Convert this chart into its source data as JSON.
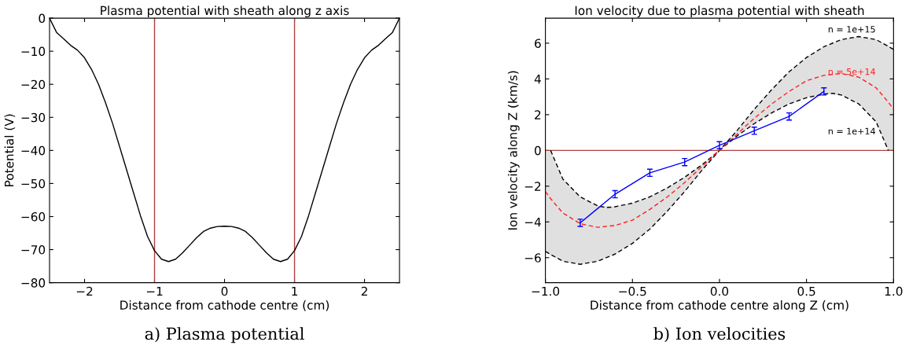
{
  "chart_data": [
    {
      "type": "line",
      "title": "Plasma potential with sheath along z axis",
      "xlabel": "Distance from cathode centre (cm)",
      "ylabel": "Potential (V)",
      "x": [
        -2.5,
        -2.4,
        -2.3,
        -2.2,
        -2.1,
        -2.0,
        -1.9,
        -1.8,
        -1.7,
        -1.6,
        -1.5,
        -1.4,
        -1.3,
        -1.2,
        -1.1,
        -1.0,
        -0.9,
        -0.8,
        -0.7,
        -0.6,
        -0.5,
        -0.4,
        -0.3,
        -0.2,
        -0.1,
        0,
        0.1,
        0.2,
        0.3,
        0.4,
        0.5,
        0.6,
        0.7,
        0.8,
        0.9,
        1.0,
        1.1,
        1.2,
        1.3,
        1.4,
        1.5,
        1.6,
        1.7,
        1.8,
        1.9,
        2.0,
        2.1,
        2.2,
        2.3,
        2.4,
        2.5
      ],
      "series": [
        {
          "color": "#000000",
          "values": [
            0,
            -4.3,
            -6.2,
            -8.2,
            -9.7,
            -12,
            -15.5,
            -20,
            -25.6,
            -31.8,
            -38.8,
            -45.8,
            -52.8,
            -59.8,
            -66,
            -70.3,
            -72.9,
            -73.6,
            -72.9,
            -71,
            -68.7,
            -66.4,
            -64.5,
            -63.5,
            -63,
            -62.9,
            -63,
            -63.5,
            -64.5,
            -66.4,
            -68.7,
            -71,
            -72.9,
            -73.6,
            -72.9,
            -70.3,
            -66,
            -59.8,
            -52.8,
            -45.8,
            -38.8,
            -31.8,
            -25.6,
            -20,
            -15.5,
            -12,
            -9.7,
            -8.2,
            -6.2,
            -4.3,
            0
          ]
        }
      ],
      "xlim": [
        -2.5,
        2.5
      ],
      "ylim": [
        -80,
        0
      ],
      "xticks": [
        {
          "value": -2,
          "label": "−2"
        },
        {
          "value": -1,
          "label": "−1"
        },
        0,
        1,
        2
      ],
      "yticks": [
        {
          "value": -80,
          "label": "−80"
        },
        {
          "value": -70,
          "label": "−70"
        },
        {
          "value": -60,
          "label": "−60"
        },
        {
          "value": -50,
          "label": "−50"
        },
        {
          "value": -40,
          "label": "−40"
        },
        {
          "value": -30,
          "label": "−30"
        },
        {
          "value": -20,
          "label": "−20"
        },
        {
          "value": -10,
          "label": "−10"
        },
        0
      ],
      "ref_lines": [
        {
          "axis": "x",
          "value": -1,
          "color": "#b04040"
        },
        {
          "axis": "x",
          "value": 1,
          "color": "#b04040"
        }
      ],
      "grid": false,
      "legend": false,
      "marker": "none",
      "line_style": "solid",
      "annotations": [
        "a) Plasma potential"
      ]
    },
    {
      "type": "line",
      "title": "Ion velocity due to plasma potential with sheath",
      "xlabel": "Distance from cathode centre along Z (cm)",
      "ylabel": "Ion velocity along Z (km/s)",
      "series": [
        {
          "color": "#000000",
          "line_style": "dashed",
          "x": [
            -1,
            -0.9,
            -0.8,
            -0.7,
            -0.6,
            -0.5,
            -0.4,
            -0.3,
            -0.2,
            -0.1,
            0,
            0.1,
            0.2,
            0.3,
            0.4,
            0.5,
            0.6,
            0.7,
            0.8,
            0.9,
            1
          ],
          "values": [
            -5.65,
            -6.2,
            -6.37,
            -6.2,
            -5.8,
            -5.2,
            -4.4,
            -3.4,
            -2.3,
            -1.1,
            0,
            1.1,
            2.3,
            3.4,
            4.4,
            5.2,
            5.8,
            6.2,
            6.37,
            6.2,
            5.65
          ]
        },
        {
          "color": "#000000",
          "line_style": "dashed",
          "x": [
            -0.97,
            -0.9,
            -0.8,
            -0.7,
            -0.65,
            -0.6,
            -0.5,
            -0.4,
            -0.3,
            -0.2,
            -0.1,
            0,
            0.1,
            0.2,
            0.3,
            0.4,
            0.5,
            0.6,
            0.65,
            0.7,
            0.8,
            0.9,
            0.97
          ],
          "values": [
            0,
            -1.6,
            -2.6,
            -3.1,
            -3.2,
            -3.15,
            -2.95,
            -2.6,
            -2.1,
            -1.5,
            -0.8,
            0,
            0.8,
            1.5,
            2.1,
            2.6,
            2.95,
            3.15,
            3.2,
            3.1,
            2.6,
            1.6,
            0
          ]
        },
        {
          "color": "#ff2020",
          "line_style": "dashed",
          "x": [
            -1,
            -0.97,
            -0.9,
            -0.8,
            -0.7,
            -0.6,
            -0.5,
            -0.4,
            -0.3,
            -0.2,
            -0.1,
            0,
            0.1,
            0.2,
            0.3,
            0.4,
            0.5,
            0.6,
            0.7,
            0.8,
            0.9,
            0.97,
            1
          ],
          "values": [
            -2.3,
            -2.7,
            -3.5,
            -4.1,
            -4.3,
            -4.2,
            -3.9,
            -3.3,
            -2.6,
            -1.8,
            -0.9,
            0,
            0.9,
            1.8,
            2.6,
            3.3,
            3.9,
            4.2,
            4.3,
            4.1,
            3.5,
            2.7,
            2.3
          ],
          "lower": [
            -5.65,
            -5.9,
            -6.2,
            -6.37,
            -6.2,
            -5.8,
            -5.2,
            -4.4,
            -3.4,
            -2.3,
            -1.1,
            0,
            0.8,
            1.5,
            2.1,
            2.6,
            2.95,
            3.15,
            3.1,
            2.6,
            1.6,
            0,
            0
          ],
          "upper": [
            0,
            0,
            -1.6,
            -2.6,
            -3.1,
            -3.15,
            -2.95,
            -2.6,
            -2.1,
            -1.5,
            -0.8,
            0,
            1.1,
            2.3,
            3.4,
            4.4,
            5.2,
            5.8,
            6.2,
            6.37,
            6.2,
            5.9,
            5.65
          ]
        },
        {
          "color": "#0000ff",
          "line_style": "solid",
          "x": [
            -0.8,
            -0.6,
            -0.4,
            -0.2,
            0,
            0.2,
            0.4,
            0.6
          ],
          "values": [
            -4.05,
            -2.45,
            -1.25,
            -0.65,
            0.29,
            1.1,
            1.9,
            3.3
          ],
          "errors": [
            0.2,
            0.2,
            0.2,
            0.2,
            0.2,
            0.2,
            0.2,
            0.2
          ]
        }
      ],
      "xlim": [
        -1,
        1
      ],
      "ylim": [
        -7.4,
        7.4
      ],
      "xticks": [
        {
          "value": -1,
          "label": "−1.0"
        },
        {
          "value": -0.5,
          "label": "−0.5"
        },
        {
          "value": 0,
          "label": "0.0"
        },
        {
          "value": 0.5,
          "label": "0.5"
        },
        {
          "value": 1,
          "label": "1.0"
        }
      ],
      "yticks": [
        {
          "value": -6,
          "label": "−6"
        },
        {
          "value": -4,
          "label": "−4"
        },
        {
          "value": -2,
          "label": "−2"
        },
        0,
        2,
        4,
        6
      ],
      "ref_lines": [
        {
          "axis": "y",
          "value": 0,
          "color": "#b04040"
        }
      ],
      "grid": false,
      "legend": false,
      "marker": "none",
      "annotations": [
        "n = 1e+15",
        "n = 5e+14",
        "n = 1e+14",
        "b) Ion velocities"
      ]
    }
  ]
}
